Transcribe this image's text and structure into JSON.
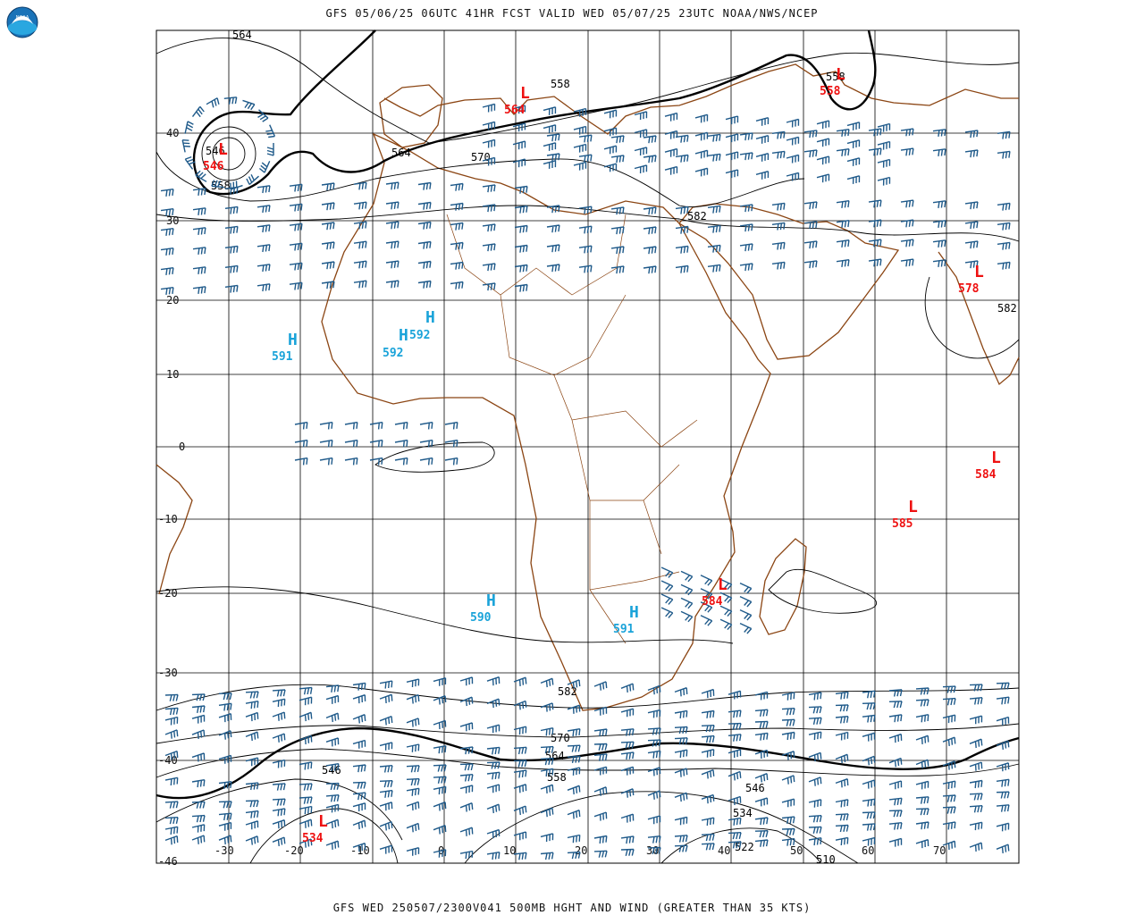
{
  "header": {
    "title": "GFS 05/06/25 06UTC 41HR FCST VALID WED 05/07/25 23UTC NOAA/NWS/NCEP"
  },
  "footer": {
    "title": "GFS WED 250507/2300V041 500MB HGHT AND WIND (GREATER THAN 35 KTS)"
  },
  "logo": {
    "text": "NOAA"
  },
  "colors": {
    "grid": "#000000",
    "coast": "#8b4513",
    "contour": "#000000",
    "wind_barb": "#1f5a8a",
    "high": "#1aa3d9",
    "low": "#ee1111"
  },
  "axes": {
    "lat_labels": [
      "40",
      "30",
      "20",
      "10",
      "0",
      "-10",
      "-20",
      "-30",
      "-40",
      "-46"
    ],
    "lon_labels": [
      "-30",
      "-20",
      "-10",
      "0",
      "10",
      "20",
      "30",
      "40",
      "50",
      "60",
      "70"
    ]
  },
  "contour_labels": [
    "564",
    "546",
    "558",
    "564",
    "570",
    "558",
    "558",
    "582",
    "582",
    "582",
    "570",
    "564",
    "558",
    "546",
    "534",
    "522",
    "510",
    "546"
  ],
  "highs": [
    {
      "letter": "H",
      "value": "591"
    },
    {
      "letter": "H",
      "value": "592"
    },
    {
      "letter": "H",
      "value": "592"
    },
    {
      "letter": "H",
      "value": "590"
    },
    {
      "letter": "H",
      "value": "591"
    }
  ],
  "lows": [
    {
      "letter": "L",
      "value": "546"
    },
    {
      "letter": "L",
      "value": "564"
    },
    {
      "letter": "L",
      "value": "558"
    },
    {
      "letter": "L",
      "value": "578"
    },
    {
      "letter": "L",
      "value": "584"
    },
    {
      "letter": "L",
      "value": "585"
    },
    {
      "letter": "L",
      "value": "584"
    },
    {
      "letter": "L",
      "value": "534"
    }
  ]
}
